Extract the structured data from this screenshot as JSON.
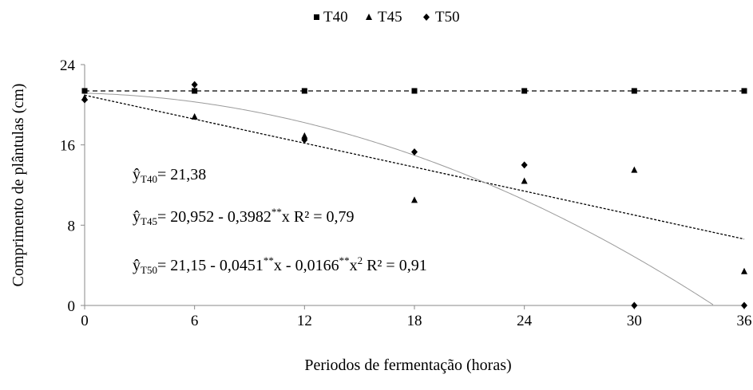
{
  "chart_data": {
    "type": "scatter",
    "title": "",
    "xlabel": "Periodos de fermentação (horas)",
    "ylabel": "Comprimento de plântulas (cm)",
    "xlim": [
      0,
      36
    ],
    "ylim": [
      0,
      24
    ],
    "x_ticks": [
      "0",
      "6",
      "12",
      "18",
      "24",
      "30",
      "36"
    ],
    "y_ticks": [
      "0",
      "8",
      "16",
      "24"
    ],
    "grid": false,
    "legend_position": "top-center",
    "series": [
      {
        "name": "T40",
        "marker": "square",
        "x": [
          0,
          6,
          12,
          18,
          24,
          30,
          36
        ],
        "y": [
          21.38,
          21.38,
          21.38,
          21.38,
          21.38,
          21.38,
          21.38
        ],
        "fit": {
          "kind": "constant",
          "a": 21.38,
          "style": "dashed"
        }
      },
      {
        "name": "T45",
        "marker": "triangle",
        "x": [
          0,
          6,
          12,
          18,
          24,
          30,
          36
        ],
        "y": [
          20.7,
          18.8,
          16.9,
          10.5,
          12.4,
          13.5,
          3.4
        ],
        "fit": {
          "kind": "linear",
          "a": 20.952,
          "b": -0.3982,
          "style": "dotted"
        }
      },
      {
        "name": "T50",
        "marker": "diamond",
        "x": [
          0,
          6,
          12,
          18,
          24,
          30,
          36
        ],
        "y": [
          20.5,
          22.0,
          16.5,
          15.3,
          14.0,
          0.0,
          0.0
        ],
        "fit": {
          "kind": "quadratic",
          "a": 21.15,
          "b": -0.0451,
          "c": -0.0166,
          "style": "solid-thin"
        }
      }
    ],
    "annotations": {
      "t40": {
        "yhat": "ŷ",
        "sub": "T40",
        "eq": "= 21,38"
      },
      "t45": {
        "yhat": "ŷ",
        "sub": "T45",
        "eq1": "=  20,952 - 0,3982",
        "sup": "**",
        "eq2": "x R² = 0,79"
      },
      "t50": {
        "yhat": "ŷ",
        "sub": "T50",
        "eq1": "= 21,15 - 0,0451",
        "sup1": "**",
        "eq2": "x - 0,0166",
        "sup2": "**",
        "eq3": "x",
        "sup3": "2",
        "eq4": "  R² = 0,91"
      }
    }
  }
}
